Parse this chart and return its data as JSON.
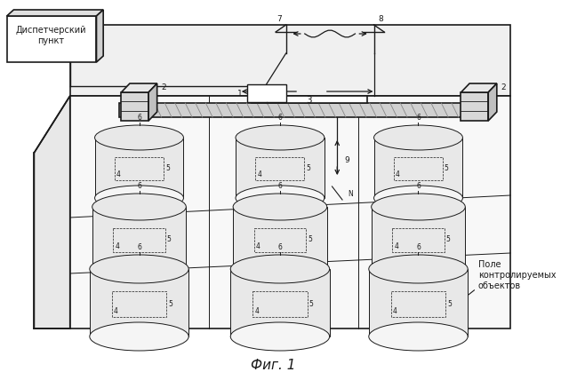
{
  "title": "Фиг. 1",
  "title_fontsize": 11,
  "background_color": "#ffffff",
  "dispatcher_label": "Диспетчерский\nпункт",
  "field_label": "Поле\nконтролируемых\nобъектов",
  "line_color": "#1a1a1a",
  "fill_light": "#f0f0f0",
  "fill_mid": "#e0e0e0",
  "fill_dark": "#c8c8c8",
  "cylinder_fill": "#e8e8e8"
}
